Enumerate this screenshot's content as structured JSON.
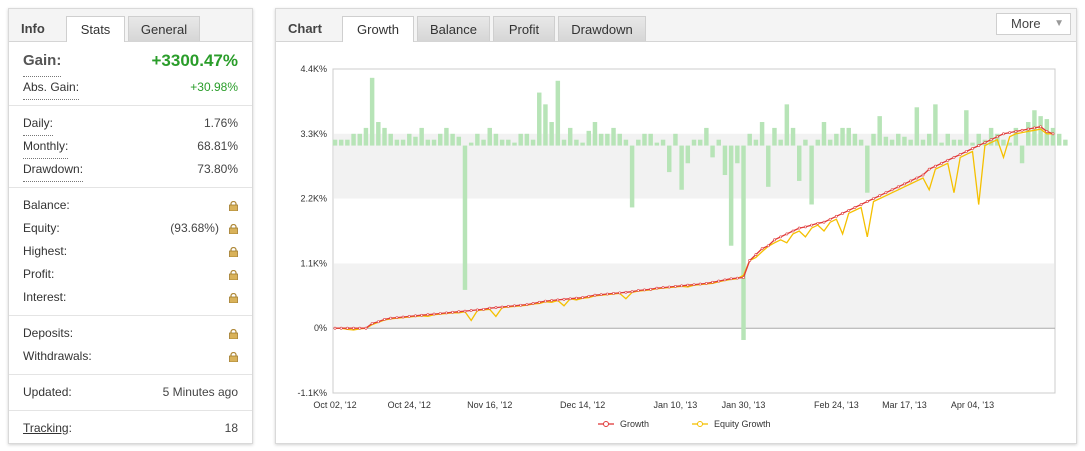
{
  "info_panel": {
    "title": "Info",
    "tabs": [
      {
        "label": "Stats",
        "active": true
      },
      {
        "label": "General",
        "active": false
      }
    ],
    "gain": {
      "label": "Gain:",
      "value": "+3300.47%"
    },
    "abs_gain": {
      "label": "Abs. Gain:",
      "value": "+30.98%"
    },
    "daily": {
      "label": "Daily:",
      "value": "1.76%"
    },
    "monthly": {
      "label": "Monthly:",
      "value": "68.81%"
    },
    "drawdown": {
      "label": "Drawdown:",
      "value": "73.80%"
    },
    "balance": {
      "label": "Balance:",
      "icon": "lock-icon"
    },
    "equity": {
      "label": "Equity:",
      "value": "(93.68%)",
      "icon": "lock-icon"
    },
    "highest": {
      "label": "Highest:",
      "icon": "lock-icon"
    },
    "profit": {
      "label": "Profit:",
      "icon": "lock-icon"
    },
    "interest": {
      "label": "Interest:",
      "icon": "lock-icon"
    },
    "deposits": {
      "label": "Deposits:",
      "icon": "lock-icon"
    },
    "withdrawals": {
      "label": "Withdrawals:",
      "icon": "lock-icon"
    },
    "updated": {
      "label": "Updated:",
      "value": "5 Minutes ago"
    },
    "tracking": {
      "label": "Tracking",
      "colon": ":",
      "value": "18"
    }
  },
  "chart_panel": {
    "title": "Chart",
    "tabs": [
      {
        "label": "Growth",
        "active": true
      },
      {
        "label": "Balance",
        "active": false
      },
      {
        "label": "Profit",
        "active": false
      },
      {
        "label": "Drawdown",
        "active": false
      }
    ],
    "more_label": "More",
    "more_icon": "triangle-down-icon"
  },
  "colors": {
    "gain_green": "#2a9d2a",
    "growth_line": "#e03a3a",
    "equity_line": "#f5c000",
    "bars": "#b7e4b7",
    "band": "#f2f2f2"
  },
  "chart_data": {
    "type": "line",
    "y_tick_labels": [
      "4.4K%",
      "3.3K%",
      "2.2K%",
      "1.1K%",
      "0%",
      "-1.1K%"
    ],
    "y_ticks": [
      4400,
      3300,
      2200,
      1100,
      0,
      -1100
    ],
    "ylim": [
      -1100,
      4400
    ],
    "x_tick_labels": [
      "Oct 02, '12",
      "Oct 24, '12",
      "Nov 16, '12",
      "Dec 14, '12",
      "Jan 10, '13",
      "Jan 30, '13",
      "Feb 24, '13",
      "Mar 17, '13",
      "Apr 04, '13"
    ],
    "x_tick_index": [
      0,
      12,
      25,
      40,
      55,
      66,
      81,
      92,
      103
    ],
    "x_count": 117,
    "shaded_bands": [
      [
        2200,
        3300
      ],
      [
        0,
        1100
      ]
    ],
    "legend": [
      {
        "name": "Growth",
        "color": "#e03a3a"
      },
      {
        "name": "Equity Growth",
        "color": "#f5c000"
      }
    ],
    "legend_position": "bottom",
    "series": [
      {
        "name": "Growth",
        "values": [
          0,
          0,
          0,
          0,
          0,
          0,
          80,
          110,
          150,
          170,
          180,
          190,
          200,
          210,
          220,
          230,
          240,
          250,
          260,
          270,
          280,
          290,
          300,
          310,
          320,
          340,
          350,
          360,
          370,
          380,
          390,
          400,
          420,
          440,
          460,
          470,
          480,
          490,
          500,
          510,
          520,
          540,
          560,
          570,
          580,
          590,
          600,
          610,
          620,
          640,
          650,
          660,
          680,
          690,
          700,
          710,
          720,
          730,
          740,
          750,
          760,
          780,
          800,
          820,
          840,
          850,
          860,
          1150,
          1250,
          1350,
          1400,
          1500,
          1550,
          1600,
          1650,
          1700,
          1720,
          1750,
          1780,
          1800,
          1850,
          1900,
          1950,
          2000,
          2050,
          2100,
          2150,
          2200,
          2250,
          2300,
          2350,
          2400,
          2450,
          2500,
          2550,
          2600,
          2700,
          2750,
          2800,
          2850,
          2900,
          2950,
          3000,
          3050,
          3100,
          3150,
          3200,
          3250,
          3300,
          3320,
          3340,
          3360,
          3380,
          3400,
          3420,
          3340,
          3300
        ]
      },
      {
        "name": "Equity Growth",
        "values": [
          0,
          0,
          -20,
          -30,
          -10,
          0,
          60,
          100,
          140,
          160,
          170,
          180,
          190,
          200,
          210,
          200,
          230,
          240,
          250,
          260,
          260,
          280,
          130,
          300,
          310,
          320,
          200,
          350,
          360,
          370,
          380,
          390,
          410,
          420,
          450,
          440,
          470,
          380,
          500,
          480,
          510,
          520,
          550,
          560,
          570,
          580,
          590,
          500,
          610,
          630,
          640,
          650,
          670,
          680,
          690,
          700,
          710,
          700,
          730,
          740,
          750,
          760,
          790,
          810,
          830,
          840,
          900,
          1150,
          1200,
          1300,
          1390,
          1450,
          1500,
          1450,
          1600,
          1650,
          1550,
          1700,
          1750,
          1650,
          1800,
          1850,
          1600,
          1950,
          2000,
          2050,
          1550,
          2150,
          2200,
          2250,
          2300,
          2350,
          2400,
          2450,
          2500,
          2550,
          2350,
          2700,
          2750,
          2800,
          2300,
          2900,
          2950,
          3000,
          2100,
          3100,
          3150,
          3200,
          2900,
          3250,
          3300,
          3320,
          3340,
          3360,
          3380,
          3300,
          3300
        ]
      },
      {
        "name": "Bars",
        "values": [
          100,
          100,
          100,
          200,
          200,
          300,
          1150,
          400,
          300,
          200,
          100,
          100,
          200,
          150,
          300,
          100,
          100,
          200,
          300,
          200,
          150,
          -2450,
          50,
          200,
          100,
          300,
          200,
          100,
          100,
          50,
          200,
          200,
          100,
          900,
          700,
          400,
          1100,
          100,
          300,
          100,
          50,
          250,
          400,
          200,
          200,
          300,
          200,
          100,
          -1050,
          100,
          200,
          200,
          50,
          100,
          -450,
          200,
          -750,
          -300,
          100,
          100,
          300,
          -200,
          100,
          -500,
          -1700,
          -300,
          -3300,
          200,
          100,
          400,
          -700,
          300,
          100,
          700,
          300,
          -600,
          100,
          -1000,
          100,
          400,
          100,
          200,
          300,
          300,
          200,
          100,
          -800,
          200,
          500,
          150,
          100,
          200,
          150,
          100,
          650,
          100,
          200,
          700,
          50,
          200,
          100,
          100,
          600,
          50,
          200,
          100,
          300,
          200,
          100,
          50,
          300,
          -300,
          400,
          600,
          500,
          450,
          300,
          200,
          100
        ]
      }
    ]
  }
}
